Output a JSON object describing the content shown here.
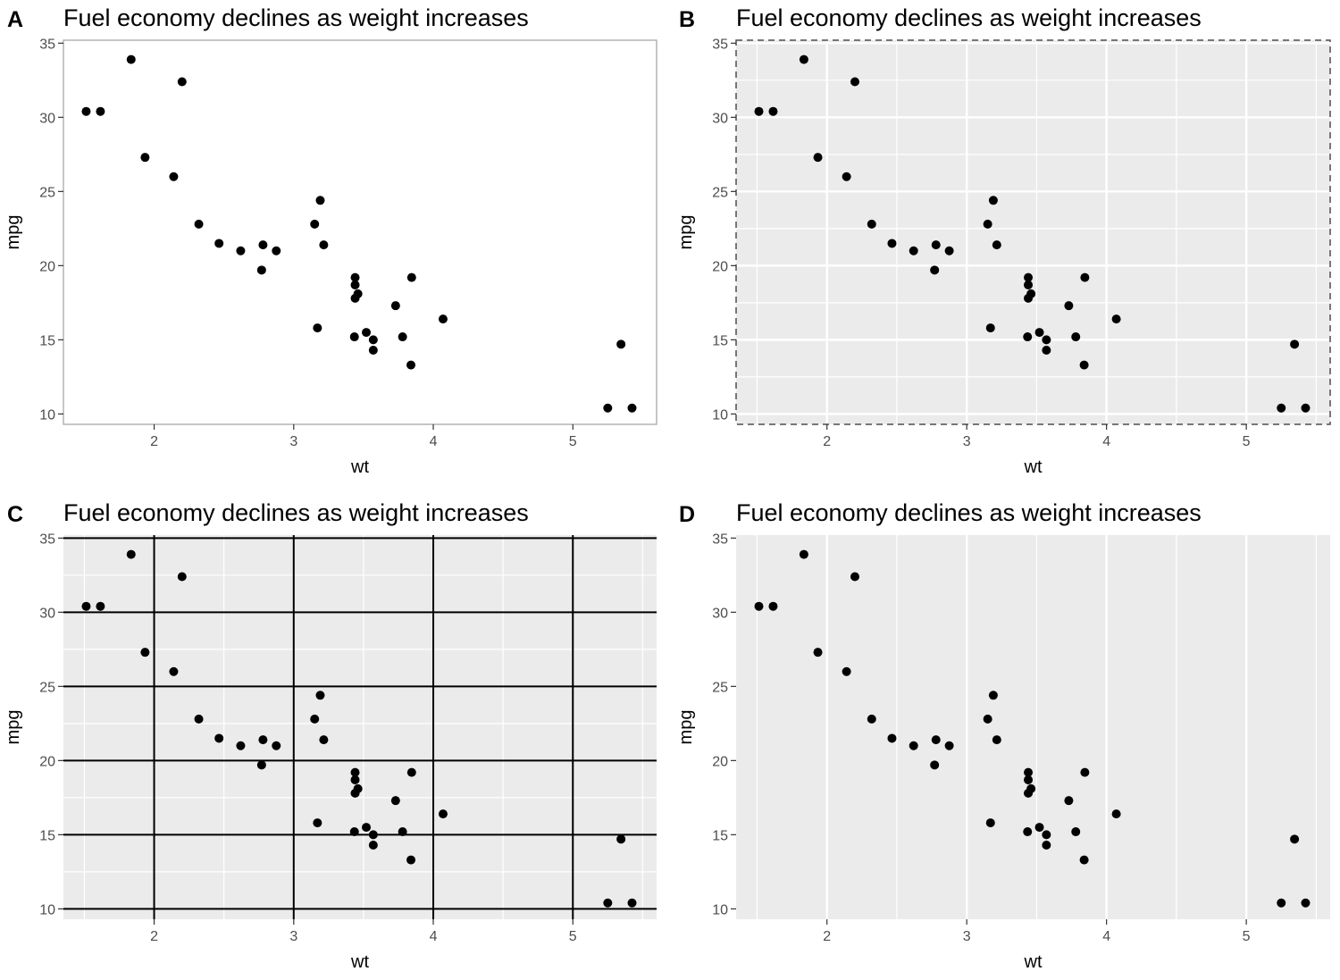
{
  "chart_data": [
    {
      "panel": "A",
      "type": "scatter",
      "theme": "bw",
      "title": "Fuel economy declines as weight increases",
      "xlabel": "wt",
      "ylabel": "mpg",
      "xlim": [
        1.35,
        5.6
      ],
      "ylim": [
        9.3,
        35.2
      ],
      "xticks": [
        2,
        3,
        4,
        5
      ],
      "yticks": [
        10,
        15,
        20,
        25,
        30,
        35
      ],
      "background": "#ffffff",
      "grid": "none",
      "border": "solid",
      "x": [
        2.62,
        2.875,
        2.32,
        3.215,
        3.44,
        3.46,
        3.57,
        3.19,
        3.15,
        3.44,
        3.44,
        4.07,
        3.73,
        3.78,
        5.25,
        5.424,
        5.345,
        2.2,
        1.615,
        1.835,
        2.465,
        3.52,
        3.435,
        3.84,
        3.845,
        1.935,
        2.14,
        1.513,
        3.17,
        2.77,
        3.57,
        2.78
      ],
      "y": [
        21.0,
        21.0,
        22.8,
        21.4,
        18.7,
        18.1,
        14.3,
        24.4,
        22.8,
        19.2,
        17.8,
        16.4,
        17.3,
        15.2,
        10.4,
        10.4,
        14.7,
        32.4,
        30.4,
        33.9,
        21.5,
        15.5,
        15.2,
        13.3,
        19.2,
        27.3,
        26.0,
        30.4,
        15.8,
        19.7,
        15.0,
        21.4
      ]
    },
    {
      "panel": "B",
      "type": "scatter",
      "theme": "grey",
      "title": "Fuel economy declines as weight increases",
      "xlabel": "wt",
      "ylabel": "mpg",
      "xlim": [
        1.35,
        5.6
      ],
      "ylim": [
        9.3,
        35.2
      ],
      "xticks": [
        2,
        3,
        4,
        5
      ],
      "yticks": [
        10,
        15,
        20,
        25,
        30,
        35
      ],
      "background": "#ebebeb",
      "grid": "white",
      "border": "dashed",
      "x": [
        2.62,
        2.875,
        2.32,
        3.215,
        3.44,
        3.46,
        3.57,
        3.19,
        3.15,
        3.44,
        3.44,
        4.07,
        3.73,
        3.78,
        5.25,
        5.424,
        5.345,
        2.2,
        1.615,
        1.835,
        2.465,
        3.52,
        3.435,
        3.84,
        3.845,
        1.935,
        2.14,
        1.513,
        3.17,
        2.77,
        3.57,
        2.78
      ],
      "y": [
        21.0,
        21.0,
        22.8,
        21.4,
        18.7,
        18.1,
        14.3,
        24.4,
        22.8,
        19.2,
        17.8,
        16.4,
        17.3,
        15.2,
        10.4,
        10.4,
        14.7,
        32.4,
        30.4,
        33.9,
        21.5,
        15.5,
        15.2,
        13.3,
        19.2,
        27.3,
        26.0,
        30.4,
        15.8,
        19.7,
        15.0,
        21.4
      ]
    },
    {
      "panel": "C",
      "type": "scatter",
      "theme": "grey",
      "title": "Fuel economy declines as weight increases",
      "xlabel": "wt",
      "ylabel": "mpg",
      "xlim": [
        1.35,
        5.6
      ],
      "ylim": [
        9.3,
        35.2
      ],
      "xticks": [
        2,
        3,
        4,
        5
      ],
      "yticks": [
        10,
        15,
        20,
        25,
        30,
        35
      ],
      "background": "#ebebeb",
      "grid": "black-major",
      "border": "none",
      "x": [
        2.62,
        2.875,
        2.32,
        3.215,
        3.44,
        3.46,
        3.57,
        3.19,
        3.15,
        3.44,
        3.44,
        4.07,
        3.73,
        3.78,
        5.25,
        5.424,
        5.345,
        2.2,
        1.615,
        1.835,
        2.465,
        3.52,
        3.435,
        3.84,
        3.845,
        1.935,
        2.14,
        1.513,
        3.17,
        2.77,
        3.57,
        2.78
      ],
      "y": [
        21.0,
        21.0,
        22.8,
        21.4,
        18.7,
        18.1,
        14.3,
        24.4,
        22.8,
        19.2,
        17.8,
        16.4,
        17.3,
        15.2,
        10.4,
        10.4,
        14.7,
        32.4,
        30.4,
        33.9,
        21.5,
        15.5,
        15.2,
        13.3,
        19.2,
        27.3,
        26.0,
        30.4,
        15.8,
        19.7,
        15.0,
        21.4
      ]
    },
    {
      "panel": "D",
      "type": "scatter",
      "theme": "grey",
      "title": "Fuel economy declines as weight increases",
      "xlabel": "wt",
      "ylabel": "mpg",
      "xlim": [
        1.35,
        5.6
      ],
      "ylim": [
        9.3,
        35.2
      ],
      "xticks": [
        2,
        3,
        4,
        5
      ],
      "yticks": [
        10,
        15,
        20,
        25,
        30,
        35
      ],
      "background": "#ebebeb",
      "grid": "white-vertical-only",
      "border": "none",
      "x": [
        2.62,
        2.875,
        2.32,
        3.215,
        3.44,
        3.46,
        3.57,
        3.19,
        3.15,
        3.44,
        3.44,
        4.07,
        3.73,
        3.78,
        5.25,
        5.424,
        5.345,
        2.2,
        1.615,
        1.835,
        2.465,
        3.52,
        3.435,
        3.84,
        3.845,
        1.935,
        2.14,
        1.513,
        3.17,
        2.77,
        3.57,
        2.78
      ],
      "y": [
        21.0,
        21.0,
        22.8,
        21.4,
        18.7,
        18.1,
        14.3,
        24.4,
        22.8,
        19.2,
        17.8,
        16.4,
        17.3,
        15.2,
        10.4,
        10.4,
        14.7,
        32.4,
        30.4,
        33.9,
        21.5,
        15.5,
        15.2,
        13.3,
        19.2,
        27.3,
        26.0,
        30.4,
        15.8,
        19.7,
        15.0,
        21.4
      ]
    }
  ]
}
